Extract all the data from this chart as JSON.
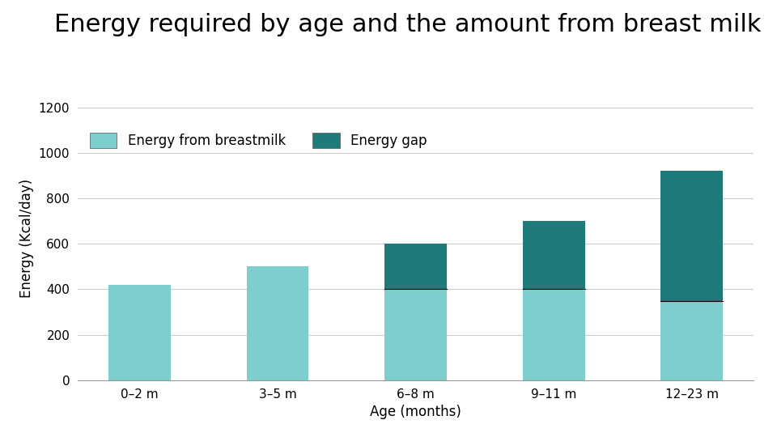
{
  "title": "Energy required by age and the amount from breast milk",
  "categories": [
    "0–2 m",
    "3–5 m",
    "6–8 m",
    "9–11 m",
    "12–23 m"
  ],
  "breastmilk": [
    420,
    500,
    400,
    400,
    350
  ],
  "energy_gap": [
    0,
    0,
    200,
    300,
    570
  ],
  "color_breastmilk": "#7ECECE",
  "color_gap": "#1F7A7A",
  "ylabel": "Energy (Kcal/day)",
  "xlabel": "Age (months)",
  "ylim": [
    0,
    1250
  ],
  "yticks": [
    0,
    200,
    400,
    600,
    800,
    1000,
    1200
  ],
  "legend_breastmilk": "Energy from breastmilk",
  "legend_gap": "Energy gap",
  "title_fontsize": 22,
  "axis_fontsize": 12,
  "tick_fontsize": 11,
  "legend_fontsize": 12,
  "bar_width": 0.45,
  "background_color": "#ffffff"
}
